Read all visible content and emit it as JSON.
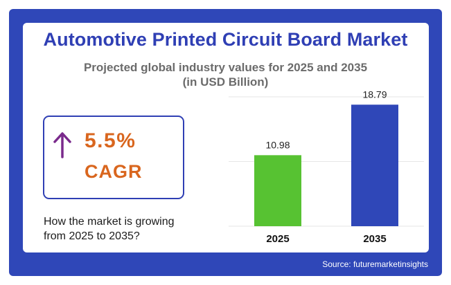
{
  "header": {
    "title": "Automotive Printed Circuit Board Market",
    "subtitle_line1": "Projected global industry values for 2025 and 2035",
    "subtitle_line2": "(in USD Billion)"
  },
  "cagr": {
    "value": "5.5%",
    "label": "CAGR",
    "icon": "arrow-up-icon"
  },
  "description": {
    "line1": "How the market is growing",
    "line2": "from 2025 to 2035?"
  },
  "footer": {
    "source": "Source: futuremarketinsights"
  },
  "colors": {
    "frame": "#2f47b8",
    "title": "#2f3fb4",
    "accent_orange": "#d9661e",
    "arrow": "#7a2a8c",
    "bar_2025": "#57c232",
    "bar_2035": "#2f47b8"
  },
  "chart_data": {
    "type": "bar",
    "categories": [
      "2025",
      "2035"
    ],
    "values": [
      10.98,
      18.79
    ],
    "value_labels": [
      "10.98",
      "18.79"
    ],
    "colors": [
      "#57c232",
      "#2f47b8"
    ],
    "ylim": [
      0,
      20
    ],
    "grid": true
  }
}
